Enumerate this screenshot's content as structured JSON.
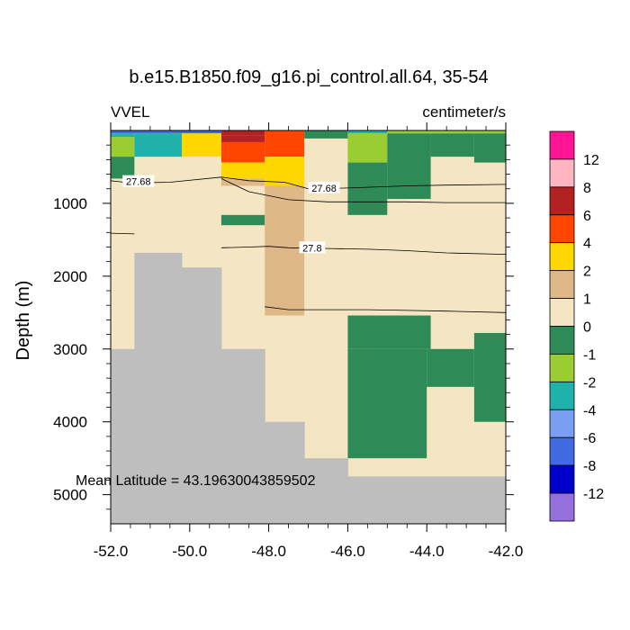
{
  "chart_data": {
    "type": "heatmap",
    "title": "b.e15.B1850.f09_g16.pi_control.all.64, 35-54",
    "left_label": "VVEL",
    "right_label": "centimeter/s",
    "ylabel": "Depth (m)",
    "xlabel": "",
    "xlim": [
      -52,
      -42
    ],
    "ylim": [
      0,
      5400
    ],
    "y_inverted": true,
    "x_ticks": [
      -52,
      -50,
      -48,
      -46,
      -44,
      -42
    ],
    "x_tick_labels": [
      "-52.0",
      "-50.0",
      "-48.0",
      "-46.0",
      "-44.0",
      "-42.0"
    ],
    "y_ticks": [
      1000,
      2000,
      3000,
      4000,
      5000
    ],
    "y_tick_labels": [
      "1000",
      "2000",
      "3000",
      "4000",
      "5000"
    ],
    "annotation": "Mean Latitude = 43.19630043859502",
    "colorbar": {
      "colors": [
        "#ff1493",
        "#ffb6c1",
        "#b22222",
        "#ff4500",
        "#ffd700",
        "#deb887",
        "#f5e6c3",
        "#2e8b57",
        "#9acd32",
        "#20b2aa",
        "#7b9ff0",
        "#4169e1",
        "#0000cd",
        "#9370db"
      ],
      "labels": [
        "12",
        "8",
        "6",
        "4",
        "2",
        "1",
        "0",
        "-1",
        "-2",
        "-4",
        "-6",
        "-8",
        "-12"
      ]
    },
    "land_color": "#bebebe",
    "background_color": "#f5e6c3",
    "cells": [
      {
        "x": [
          -52,
          -49.2
        ],
        "y": [
          0,
          40
        ],
        "color": "#4169e1"
      },
      {
        "x": [
          -52,
          -51.4
        ],
        "y": [
          40,
          90
        ],
        "color": "#20b2aa"
      },
      {
        "x": [
          -52,
          -51.4
        ],
        "y": [
          90,
          360
        ],
        "color": "#9acd32"
      },
      {
        "x": [
          -52,
          -51.4
        ],
        "y": [
          360,
          660
        ],
        "color": "#2e8b57"
      },
      {
        "x": [
          -51.4,
          -50.2
        ],
        "y": [
          40,
          360
        ],
        "color": "#20b2aa"
      },
      {
        "x": [
          -50.2,
          -49.2
        ],
        "y": [
          40,
          360
        ],
        "color": "#ffd700"
      },
      {
        "x": [
          -49.2,
          -48.1
        ],
        "y": [
          0,
          70
        ],
        "color": "#b22222"
      },
      {
        "x": [
          -49.2,
          -48.1
        ],
        "y": [
          70,
          160
        ],
        "color": "#b22222"
      },
      {
        "x": [
          -49.2,
          -48.1
        ],
        "y": [
          160,
          440
        ],
        "color": "#ff4500"
      },
      {
        "x": [
          -49.2,
          -48.1
        ],
        "y": [
          440,
          660
        ],
        "color": "#ffd700"
      },
      {
        "x": [
          -49.2,
          -48.1
        ],
        "y": [
          660,
          760
        ],
        "color": "#deb887"
      },
      {
        "x": [
          -49.2,
          -48.1
        ],
        "y": [
          1160,
          1300
        ],
        "color": "#2e8b57"
      },
      {
        "x": [
          -48.1,
          -47.1
        ],
        "y": [
          0,
          360
        ],
        "color": "#ff4500"
      },
      {
        "x": [
          -48.1,
          -47.1
        ],
        "y": [
          360,
          760
        ],
        "color": "#ffd700"
      },
      {
        "x": [
          -48.1,
          -47.1
        ],
        "y": [
          760,
          2540
        ],
        "color": "#deb887"
      },
      {
        "x": [
          -47.1,
          -46.0
        ],
        "y": [
          0,
          110
        ],
        "color": "#2e8b57"
      },
      {
        "x": [
          -46.0,
          -45.0
        ],
        "y": [
          0,
          40
        ],
        "color": "#20b2aa"
      },
      {
        "x": [
          -46.0,
          -45.0
        ],
        "y": [
          40,
          440
        ],
        "color": "#9acd32"
      },
      {
        "x": [
          -46.0,
          -45.0
        ],
        "y": [
          440,
          1160
        ],
        "color": "#2e8b57"
      },
      {
        "x": [
          -45.0,
          -43.9
        ],
        "y": [
          0,
          40
        ],
        "color": "#9acd32"
      },
      {
        "x": [
          -45.0,
          -43.9
        ],
        "y": [
          40,
          940
        ],
        "color": "#2e8b57"
      },
      {
        "x": [
          -43.9,
          -42.0
        ],
        "y": [
          0,
          40
        ],
        "color": "#9acd32"
      },
      {
        "x": [
          -43.9,
          -42.8
        ],
        "y": [
          40,
          360
        ],
        "color": "#2e8b57"
      },
      {
        "x": [
          -42.8,
          -42.0
        ],
        "y": [
          40,
          440
        ],
        "color": "#2e8b57"
      },
      {
        "x": [
          -46.0,
          -43.9
        ],
        "y": [
          2540,
          3000
        ],
        "color": "#2e8b57"
      },
      {
        "x": [
          -46.0,
          -44.0
        ],
        "y": [
          3000,
          4500
        ],
        "color": "#2e8b57"
      },
      {
        "x": [
          -44.0,
          -42.8
        ],
        "y": [
          3000,
          3520
        ],
        "color": "#2e8b57"
      },
      {
        "x": [
          -42.8,
          -42.0
        ],
        "y": [
          2780,
          4000
        ],
        "color": "#2e8b57"
      }
    ],
    "land": [
      {
        "x": [
          -52,
          -51.4
        ],
        "y": [
          3000,
          5400
        ]
      },
      {
        "x": [
          -51.4,
          -50.2
        ],
        "y": [
          1680,
          5400
        ]
      },
      {
        "x": [
          -50.2,
          -49.2
        ],
        "y": [
          1880,
          5400
        ]
      },
      {
        "x": [
          -49.2,
          -48.1
        ],
        "y": [
          3000,
          5400
        ]
      },
      {
        "x": [
          -48.1,
          -47.1
        ],
        "y": [
          4000,
          5400
        ]
      },
      {
        "x": [
          -47.1,
          -46.0
        ],
        "y": [
          4500,
          5400
        ]
      },
      {
        "x": [
          -46.0,
          -42.0
        ],
        "y": [
          4750,
          5400
        ]
      }
    ],
    "contours": [
      {
        "label": "27.68",
        "points": [
          [
            -52,
            690
          ],
          [
            -51.5,
            720
          ],
          [
            -50.5,
            710
          ],
          [
            -49.2,
            640
          ],
          [
            -48.5,
            690
          ],
          [
            -47.6,
            710
          ],
          [
            -47.0,
            800
          ],
          [
            -46,
            790
          ],
          [
            -44.5,
            760
          ],
          [
            -43.5,
            750
          ],
          [
            -42,
            740
          ]
        ],
        "label_at": [
          -51.3,
          700
        ]
      },
      {
        "label": "27.68",
        "points": [
          [
            -49.2,
            660
          ],
          [
            -48.5,
            840
          ],
          [
            -47.5,
            950
          ],
          [
            -46.5,
            980
          ],
          [
            -45.5,
            980
          ],
          [
            -44.5,
            980
          ],
          [
            -43.5,
            990
          ],
          [
            -42,
            990
          ]
        ],
        "label_at": [
          -46.6,
          790
        ]
      },
      {
        "label": "",
        "points": [
          [
            -52,
            1410
          ],
          [
            -51.4,
            1420
          ]
        ],
        "label_at": null
      },
      {
        "label": "27.8",
        "points": [
          [
            -49.2,
            1610
          ],
          [
            -48.5,
            1600
          ],
          [
            -48.0,
            1590
          ],
          [
            -47.5,
            1610
          ],
          [
            -46.5,
            1620
          ],
          [
            -45.5,
            1630
          ],
          [
            -44.5,
            1650
          ],
          [
            -43.5,
            1680
          ],
          [
            -42,
            1700
          ]
        ],
        "label_at": [
          -46.9,
          1610
        ]
      },
      {
        "label": "",
        "points": [
          [
            -48.1,
            2420
          ],
          [
            -47.5,
            2460
          ],
          [
            -46.5,
            2460
          ],
          [
            -45.5,
            2460
          ],
          [
            -44.5,
            2470
          ],
          [
            -43.5,
            2480
          ],
          [
            -42,
            2500
          ]
        ],
        "label_at": null
      }
    ]
  }
}
